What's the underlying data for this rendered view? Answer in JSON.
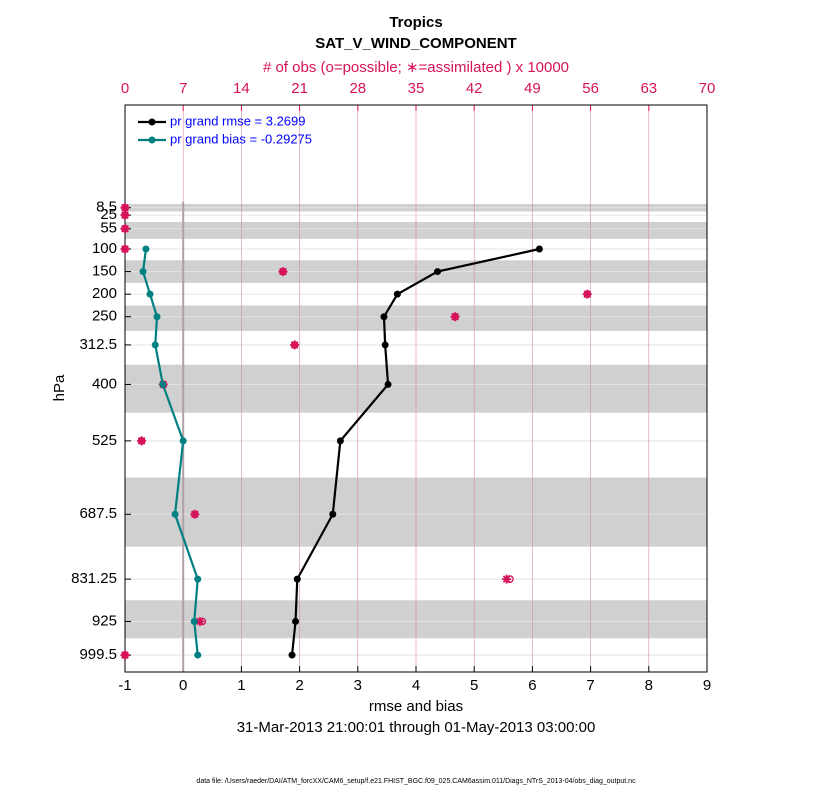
{
  "chart_data": {
    "type": "profile",
    "title": "Tropics",
    "subtitle": "SAT_V_WIND_COMPONENT",
    "x2_label": "# of obs (o=possible; ∗=assimilated ) x 10000",
    "xlabel": "rmse and bias",
    "ylabel": "hPa",
    "date_range": "31-Mar-2013 21:00:01 through 01-May-2013 03:00:00",
    "footer": "data file: /Users/raeder/DAI/ATM_forcXX/CAM6_setup/f.e21.FHIST_BGC.f09_025.CAM6assim.011/Diags_NTrS_2013-04/obs_diag_output.nc",
    "levels": [
      8.5,
      25,
      55,
      100,
      150,
      200,
      250,
      312.5,
      400,
      525,
      687.5,
      831.25,
      925,
      999.5
    ],
    "series": [
      {
        "name": "pr grand rmse = 3.2699",
        "color": "#000000",
        "values": [
          null,
          null,
          null,
          6.12,
          4.37,
          3.68,
          3.45,
          3.47,
          3.52,
          2.7,
          2.57,
          1.96,
          1.93,
          1.87
        ]
      },
      {
        "name": "pr grand bias = -0.29275",
        "color": "#008080",
        "values": [
          null,
          null,
          null,
          -0.64,
          -0.69,
          -0.57,
          -0.45,
          -0.48,
          -0.35,
          0.0,
          -0.14,
          0.25,
          0.19,
          0.25
        ]
      }
    ],
    "obs_color": "#d6135a",
    "obs_possible": [
      0,
      0,
      0,
      0,
      19.0,
      55.6,
      39.7,
      20.4,
      4.6,
      2.0,
      8.4,
      46.3,
      9.3,
      0
    ],
    "obs_assimilated": [
      0,
      0,
      0,
      0,
      19.0,
      55.6,
      39.7,
      20.4,
      4.6,
      2.0,
      8.4,
      45.9,
      9.0,
      0
    ],
    "xlim": [
      -1,
      9
    ],
    "xticks": [
      -1,
      0,
      1,
      2,
      3,
      4,
      5,
      6,
      7,
      8,
      9
    ],
    "x2lim": [
      0,
      70
    ],
    "x2ticks": [
      0,
      7,
      14,
      21,
      28,
      35,
      42,
      49,
      56,
      63,
      70
    ],
    "ylim": [
      1037,
      -219
    ],
    "yticks": [
      8.5,
      25,
      55,
      100,
      150,
      200,
      250,
      312.5,
      400,
      525,
      687.5,
      831.25,
      925,
      999.5
    ],
    "grid": true,
    "legend": "upper left"
  }
}
